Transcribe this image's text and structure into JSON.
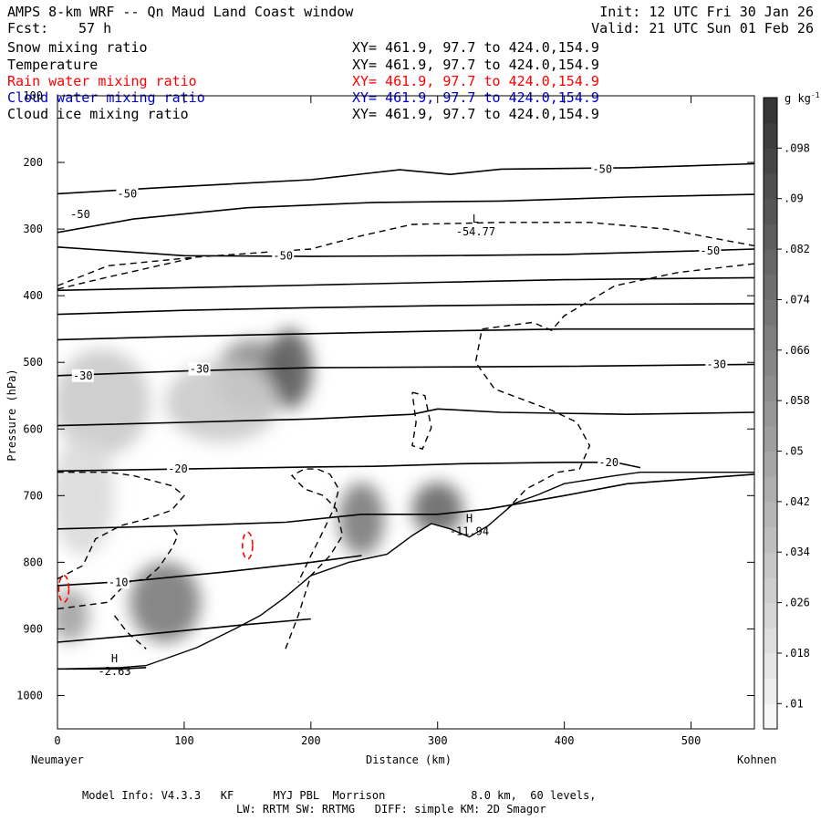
{
  "header": {
    "title": "AMPS 8-km WRF -- Qn Maud Land Coast window",
    "forecast_label": "Fcst:",
    "forecast_hours": "57 h",
    "init": "Init: 12 UTC Fri 30 Jan 26",
    "valid": "Valid: 21 UTC Sun 01 Feb 26"
  },
  "fields": [
    {
      "name": "Snow mixing ratio",
      "xy": "XY= 461.9, 97.7 to 424.0,154.9",
      "color": "#000000"
    },
    {
      "name": "Temperature",
      "xy": "XY= 461.9, 97.7 to 424.0,154.9",
      "color": "#000000"
    },
    {
      "name": "Rain water mixing ratio",
      "xy": "XY= 461.9, 97.7 to 424.0,154.9",
      "color": "#ff0000"
    },
    {
      "name": "Cloud water mixing ratio",
      "xy": "XY= 461.9, 97.7 to 424.0,154.9",
      "color": "#0000cc"
    },
    {
      "name": "Cloud ice mixing ratio",
      "xy": "XY= 461.9, 97.7 to 424.0,154.9",
      "color": "#000000"
    }
  ],
  "footer": {
    "line1": "Model Info: V4.3.3   KF      MYJ PBL  Morrison             8.0 km,  60 levels,",
    "line2": "LW: RRTM SW: RRTMG   DIFF: simple KM: 2D Smagor"
  },
  "chart_data": {
    "type": "cross-section contour",
    "xlabel": "Distance (km)",
    "ylabel": "Pressure (hPa)",
    "x_start_label": "Neumayer",
    "x_end_label": "Kohnen",
    "xlim": [
      0,
      550
    ],
    "ylim": [
      1050,
      100
    ],
    "x_ticks": [
      0,
      100,
      200,
      300,
      400,
      500
    ],
    "y_ticks": [
      100,
      200,
      300,
      400,
      500,
      600,
      700,
      800,
      900,
      1000
    ],
    "grid": false,
    "colorbar": {
      "unit": "g kg",
      "unit_exp": "-1",
      "ticks": [
        "0.01",
        ".018",
        ".026",
        ".034",
        ".042",
        ".05",
        ".058",
        ".066",
        ".074",
        ".082",
        ".09",
        ".098"
      ],
      "tick_values": [
        0.01,
        0.018,
        0.026,
        0.034,
        0.042,
        0.05,
        0.058,
        0.066,
        0.074,
        0.082,
        0.09,
        0.098
      ],
      "tick_text": [
        ".01",
        ".018",
        ".026",
        ".034",
        ".042",
        ".05",
        ".058",
        ".066",
        ".074",
        ".082",
        ".09",
        ".098"
      ],
      "range": [
        0.006,
        0.106
      ],
      "levels": 25
    },
    "temperature_isotherms": [
      {
        "label": "-50",
        "points": [
          [
            0,
            247
          ],
          [
            80,
            238
          ],
          [
            200,
            226
          ],
          [
            270,
            211
          ],
          [
            310,
            218
          ],
          [
            350,
            210
          ],
          [
            450,
            208
          ],
          [
            550,
            202
          ]
        ]
      },
      {
        "label": "-50",
        "points": [
          [
            0,
            305
          ],
          [
            60,
            285
          ],
          [
            150,
            268
          ],
          [
            250,
            260
          ],
          [
            350,
            258
          ],
          [
            450,
            252
          ],
          [
            550,
            248
          ]
        ]
      },
      {
        "label": "-50",
        "points": [
          [
            0,
            327
          ],
          [
            100,
            340
          ],
          [
            200,
            341
          ],
          [
            300,
            340
          ],
          [
            400,
            338
          ],
          [
            500,
            333
          ],
          [
            550,
            330
          ]
        ]
      },
      {
        "label": "",
        "points": [
          [
            0,
            392
          ],
          [
            100,
            388
          ],
          [
            200,
            384
          ],
          [
            300,
            380
          ],
          [
            400,
            376
          ],
          [
            550,
            373
          ]
        ]
      },
      {
        "label": "",
        "points": [
          [
            0,
            428
          ],
          [
            100,
            422
          ],
          [
            200,
            418
          ],
          [
            300,
            415
          ],
          [
            400,
            413
          ],
          [
            550,
            412
          ]
        ]
      },
      {
        "label": "",
        "points": [
          [
            0,
            466
          ],
          [
            100,
            461
          ],
          [
            200,
            457
          ],
          [
            300,
            453
          ],
          [
            400,
            450
          ],
          [
            550,
            450
          ]
        ]
      },
      {
        "label": "-30",
        "points": [
          [
            0,
            520
          ],
          [
            100,
            513
          ],
          [
            200,
            508
          ],
          [
            300,
            507
          ],
          [
            400,
            506
          ],
          [
            550,
            503
          ]
        ]
      },
      {
        "label": "",
        "points": [
          [
            0,
            595
          ],
          [
            100,
            590
          ],
          [
            200,
            585
          ],
          [
            280,
            578
          ],
          [
            300,
            570
          ],
          [
            350,
            575
          ],
          [
            450,
            578
          ],
          [
            550,
            575
          ]
        ]
      },
      {
        "label": "-20",
        "points": [
          [
            0,
            663
          ],
          [
            100,
            660
          ],
          [
            200,
            657
          ],
          [
            250,
            656
          ],
          [
            320,
            652
          ],
          [
            400,
            650
          ],
          [
            440,
            650
          ],
          [
            460,
            658
          ]
        ]
      },
      {
        "label": "",
        "points": [
          [
            0,
            750
          ],
          [
            100,
            745
          ],
          [
            180,
            740
          ],
          [
            240,
            728
          ],
          [
            300,
            728
          ],
          [
            340,
            720
          ],
          [
            400,
            700
          ],
          [
            450,
            682
          ],
          [
            550,
            668
          ]
        ]
      },
      {
        "label": "-10",
        "points": [
          [
            0,
            835
          ],
          [
            60,
            828
          ],
          [
            130,
            815
          ],
          [
            200,
            800
          ],
          [
            240,
            790
          ]
        ]
      },
      {
        "label": "",
        "points": [
          [
            0,
            920
          ],
          [
            60,
            910
          ],
          [
            140,
            895
          ],
          [
            200,
            885
          ]
        ]
      },
      {
        "label": "",
        "points": [
          [
            0,
            960
          ],
          [
            50,
            960
          ],
          [
            70,
            958
          ]
        ]
      }
    ],
    "isotherm_labels": [
      {
        "text": "-50",
        "x": 55,
        "p": 247
      },
      {
        "text": "-50",
        "x": 430,
        "p": 210
      },
      {
        "text": "-50",
        "x": 18,
        "p": 278
      },
      {
        "text": "-50",
        "x": 178,
        "p": 340
      },
      {
        "text": "-50",
        "x": 515,
        "p": 333
      },
      {
        "text": "-30",
        "x": 20,
        "p": 520
      },
      {
        "text": "-30",
        "x": 112,
        "p": 510
      },
      {
        "text": "-30",
        "x": 520,
        "p": 503
      },
      {
        "text": "-20",
        "x": 95,
        "p": 660
      },
      {
        "text": "-20",
        "x": 435,
        "p": 650
      },
      {
        "text": "-10",
        "x": 48,
        "p": 830
      }
    ],
    "extrema": [
      {
        "type": "L",
        "value": "-54.77",
        "x": 330,
        "p": 290
      },
      {
        "type": "H",
        "value": "-11.94",
        "x": 325,
        "p": 740
      },
      {
        "type": "H",
        "value": "-2.63",
        "x": 45,
        "p": 950
      }
    ],
    "terrain_pressure": [
      [
        0,
        960
      ],
      [
        50,
        958
      ],
      [
        70,
        955
      ],
      [
        110,
        928
      ],
      [
        140,
        900
      ],
      [
        160,
        880
      ],
      [
        180,
        852
      ],
      [
        200,
        820
      ],
      [
        230,
        800
      ],
      [
        260,
        788
      ],
      [
        280,
        760
      ],
      [
        295,
        742
      ],
      [
        310,
        750
      ],
      [
        325,
        762
      ],
      [
        340,
        745
      ],
      [
        360,
        712
      ],
      [
        380,
        698
      ],
      [
        400,
        682
      ],
      [
        440,
        670
      ],
      [
        460,
        665
      ],
      [
        550,
        665
      ]
    ],
    "snow_mixing_ratio_cells": [
      {
        "x": 35,
        "p": 560,
        "rx": 38,
        "rp": 80,
        "value": 0.03
      },
      {
        "x": 20,
        "p": 700,
        "rx": 25,
        "rp": 90,
        "value": 0.022
      },
      {
        "x": 155,
        "p": 520,
        "rx": 30,
        "rp": 55,
        "value": 0.06
      },
      {
        "x": 183,
        "p": 510,
        "rx": 18,
        "rp": 60,
        "value": 0.085
      },
      {
        "x": 130,
        "p": 560,
        "rx": 45,
        "rp": 60,
        "value": 0.03
      },
      {
        "x": 85,
        "p": 860,
        "rx": 28,
        "rp": 60,
        "value": 0.07
      },
      {
        "x": 10,
        "p": 880,
        "rx": 15,
        "rp": 40,
        "value": 0.05
      },
      {
        "x": 240,
        "p": 735,
        "rx": 18,
        "rp": 55,
        "value": 0.07
      },
      {
        "x": 300,
        "p": 720,
        "rx": 20,
        "rp": 40,
        "value": 0.08
      }
    ],
    "cloud_ice_contours": [
      [
        [
          0,
          385
        ],
        [
          40,
          355
        ],
        [
          110,
          342
        ],
        [
          200,
          330
        ],
        [
          240,
          310
        ],
        [
          280,
          293
        ],
        [
          350,
          290
        ],
        [
          420,
          290
        ],
        [
          480,
          300
        ],
        [
          530,
          318
        ],
        [
          550,
          325
        ]
      ],
      [
        [
          0,
          390
        ],
        [
          40,
          372
        ],
        [
          110,
          342
        ]
      ],
      [
        [
          550,
          352
        ],
        [
          490,
          365
        ],
        [
          440,
          385
        ],
        [
          400,
          430
        ],
        [
          390,
          452
        ],
        [
          375,
          440
        ],
        [
          335,
          450
        ],
        [
          330,
          500
        ],
        [
          345,
          540
        ],
        [
          390,
          572
        ],
        [
          410,
          590
        ],
        [
          420,
          625
        ],
        [
          412,
          660
        ],
        [
          395,
          665
        ],
        [
          370,
          690
        ],
        [
          355,
          720
        ]
      ],
      [
        [
          280,
          545
        ],
        [
          290,
          550
        ],
        [
          295,
          598
        ],
        [
          288,
          630
        ],
        [
          280,
          625
        ],
        [
          283,
          590
        ],
        [
          280,
          545
        ]
      ],
      [
        [
          0,
          825
        ],
        [
          20,
          805
        ],
        [
          30,
          765
        ],
        [
          50,
          745
        ],
        [
          70,
          735
        ],
        [
          90,
          722
        ],
        [
          100,
          700
        ],
        [
          90,
          685
        ],
        [
          60,
          670
        ],
        [
          40,
          665
        ],
        [
          0,
          665
        ]
      ],
      [
        [
          0,
          870
        ],
        [
          40,
          860
        ],
        [
          55,
          830
        ],
        [
          70,
          825
        ],
        [
          80,
          808
        ],
        [
          90,
          780
        ],
        [
          95,
          760
        ],
        [
          90,
          745
        ]
      ],
      [
        [
          45,
          880
        ],
        [
          55,
          905
        ],
        [
          70,
          930
        ]
      ],
      [
        [
          180,
          930
        ],
        [
          190,
          880
        ],
        [
          200,
          820
        ],
        [
          215,
          790
        ],
        [
          225,
          760
        ],
        [
          220,
          720
        ],
        [
          210,
          700
        ],
        [
          195,
          690
        ],
        [
          185,
          670
        ],
        [
          195,
          660
        ],
        [
          205,
          660
        ],
        [
          215,
          668
        ],
        [
          222,
          690
        ],
        [
          218,
          720
        ],
        [
          208,
          760
        ],
        [
          200,
          790
        ],
        [
          190,
          830
        ]
      ]
    ],
    "rain_water_contours": [
      {
        "x": 5,
        "p": 840,
        "rx": 4,
        "rp": 20
      },
      {
        "x": 150,
        "p": 775,
        "rx": 4,
        "rp": 20
      }
    ]
  }
}
